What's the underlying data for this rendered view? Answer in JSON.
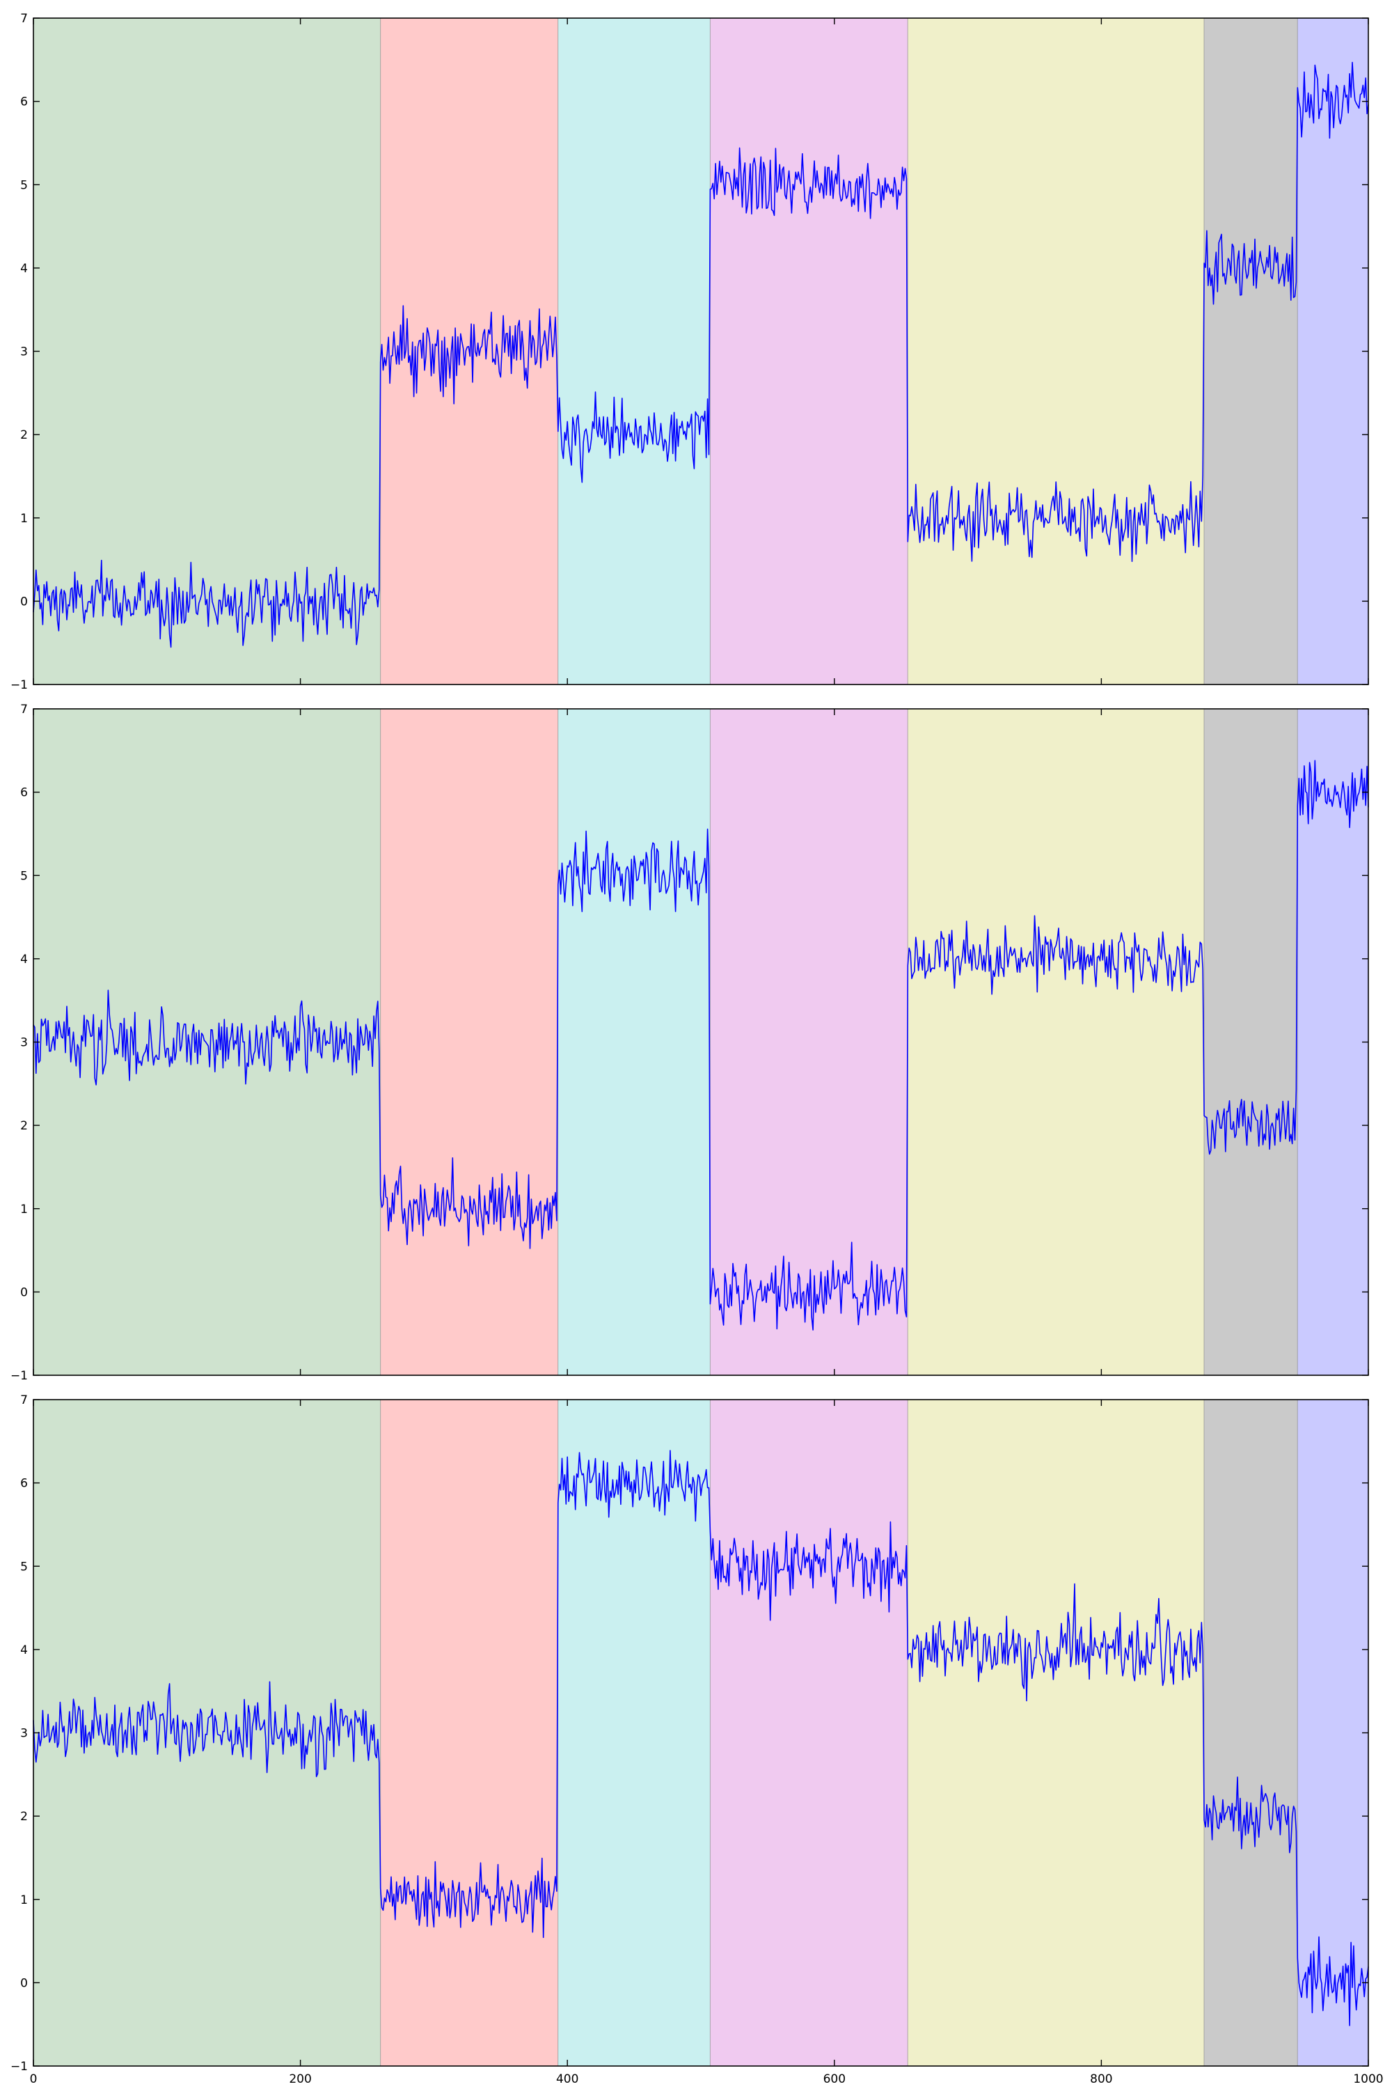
{
  "chart_data": [
    {
      "type": "line",
      "panel": "top",
      "xlim": [
        0,
        1000
      ],
      "ylim": [
        -1,
        7
      ],
      "yticks": [
        "−1",
        "0",
        "1",
        "2",
        "3",
        "4",
        "5",
        "6",
        "7"
      ],
      "xticks": [],
      "segments": [
        {
          "start": 0,
          "end": 260,
          "color": "#cfe3cf",
          "mean": 0
        },
        {
          "start": 260,
          "end": 393,
          "color": "#ffcaca",
          "mean": 3
        },
        {
          "start": 393,
          "end": 507,
          "color": "#caf0f0",
          "mean": 2
        },
        {
          "start": 507,
          "end": 655,
          "color": "#f0caf0",
          "mean": 5
        },
        {
          "start": 655,
          "end": 877,
          "color": "#f0f0ca",
          "mean": 1
        },
        {
          "start": 877,
          "end": 947,
          "color": "#cacaca",
          "mean": 4
        },
        {
          "start": 947,
          "end": 1000,
          "color": "#cacaff",
          "mean": 6
        }
      ],
      "noise_sd": 0.2,
      "line_color": "#0000ff"
    },
    {
      "type": "line",
      "panel": "middle",
      "xlim": [
        0,
        1000
      ],
      "ylim": [
        -1,
        7
      ],
      "yticks": [
        "−1",
        "0",
        "1",
        "2",
        "3",
        "4",
        "5",
        "6",
        "7"
      ],
      "xticks": [],
      "segments": [
        {
          "start": 0,
          "end": 260,
          "color": "#cfe3cf",
          "mean": 3
        },
        {
          "start": 260,
          "end": 393,
          "color": "#ffcaca",
          "mean": 1
        },
        {
          "start": 393,
          "end": 507,
          "color": "#caf0f0",
          "mean": 5
        },
        {
          "start": 507,
          "end": 655,
          "color": "#f0caf0",
          "mean": 0
        },
        {
          "start": 655,
          "end": 877,
          "color": "#f0f0ca",
          "mean": 4
        },
        {
          "start": 877,
          "end": 947,
          "color": "#cacaca",
          "mean": 2
        },
        {
          "start": 947,
          "end": 1000,
          "color": "#cacaff",
          "mean": 6
        }
      ],
      "noise_sd": 0.2,
      "line_color": "#0000ff"
    },
    {
      "type": "line",
      "panel": "bottom",
      "xlim": [
        0,
        1000
      ],
      "ylim": [
        -1,
        7
      ],
      "yticks": [
        "−1",
        "0",
        "1",
        "2",
        "3",
        "4",
        "5",
        "6",
        "7"
      ],
      "xticks": [
        "0",
        "200",
        "400",
        "600",
        "800",
        "1000"
      ],
      "segments": [
        {
          "start": 0,
          "end": 260,
          "color": "#cfe3cf",
          "mean": 3
        },
        {
          "start": 260,
          "end": 393,
          "color": "#ffcaca",
          "mean": 1
        },
        {
          "start": 393,
          "end": 507,
          "color": "#caf0f0",
          "mean": 6
        },
        {
          "start": 507,
          "end": 655,
          "color": "#f0caf0",
          "mean": 5
        },
        {
          "start": 655,
          "end": 877,
          "color": "#f0f0ca",
          "mean": 4
        },
        {
          "start": 877,
          "end": 947,
          "color": "#cacaca",
          "mean": 2
        },
        {
          "start": 947,
          "end": 1000,
          "color": "#cacaff",
          "mean": 0
        }
      ],
      "noise_sd": 0.2,
      "line_color": "#0000ff"
    }
  ]
}
